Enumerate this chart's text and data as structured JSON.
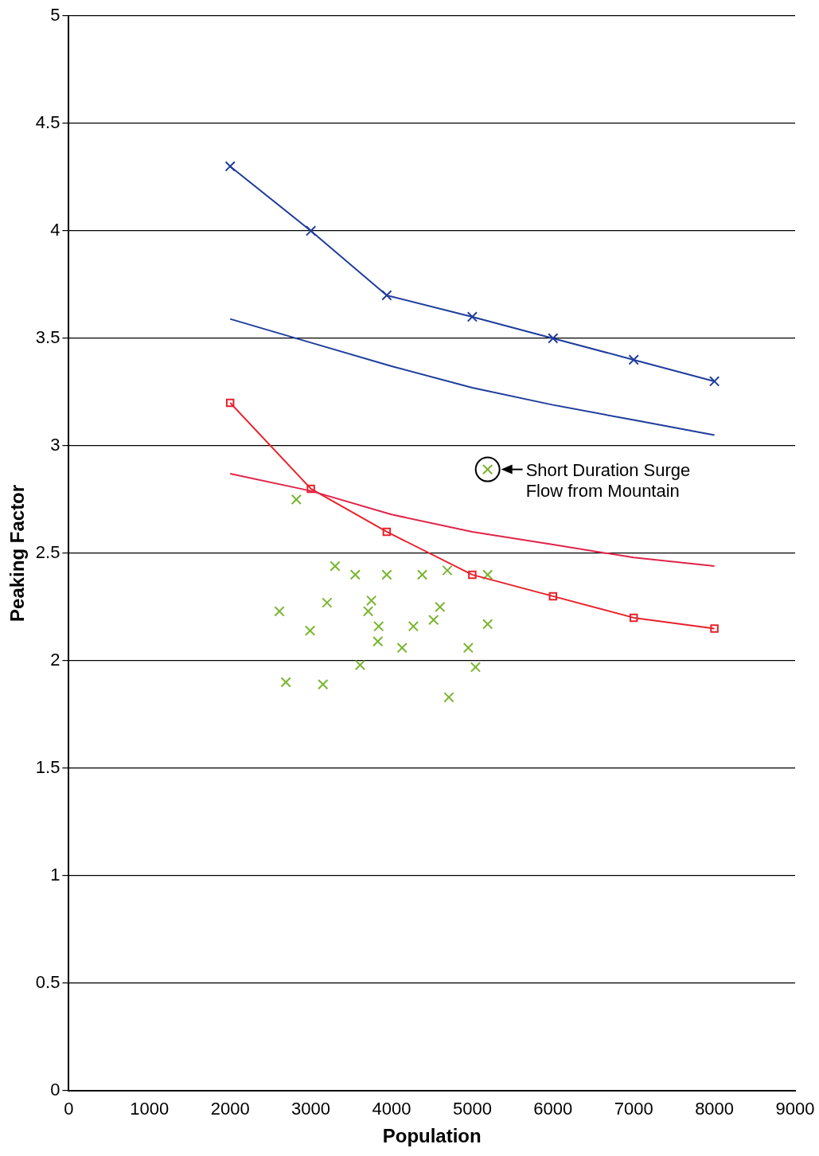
{
  "chart_data": {
    "type": "line",
    "xlabel": "Population",
    "ylabel": "Peaking Factor",
    "xlim": [
      0,
      9000
    ],
    "xticks": [
      0,
      1000,
      2000,
      3000,
      4000,
      5000,
      6000,
      7000,
      8000,
      9000
    ],
    "ylim": [
      0,
      5
    ],
    "yticks": [
      0,
      0.5,
      1,
      1.5,
      2,
      2.5,
      3,
      3.5,
      4,
      4.5,
      5
    ],
    "grid": "y",
    "annotations": [
      {
        "text": "Short Duration Surge Flow from Mountain",
        "x": 5190,
        "y": 2.89
      }
    ],
    "series": [
      {
        "color": "#1f3c9c",
        "marker": "cross",
        "x": [
          2000,
          3000,
          3940,
          5000,
          6000,
          7000,
          8000
        ],
        "values": [
          4.3,
          4.0,
          3.7,
          3.6,
          3.5,
          3.4,
          3.3
        ]
      },
      {
        "color": "#1f3c9c",
        "marker": "none",
        "x": [
          2000,
          3000,
          4000,
          5000,
          6000,
          7000,
          8000
        ],
        "values": [
          3.59,
          3.48,
          3.37,
          3.27,
          3.19,
          3.12,
          3.05
        ]
      },
      {
        "color": "#e0244a",
        "marker": "none",
        "x": [
          2000,
          3000,
          4000,
          5000,
          6000,
          7000,
          8000
        ],
        "values": [
          2.87,
          2.79,
          2.68,
          2.6,
          2.54,
          2.48,
          2.44
        ]
      },
      {
        "color": "#e8202a",
        "marker": "square",
        "x": [
          2000,
          3000,
          3940,
          5000,
          6000,
          7000,
          8000
        ],
        "values": [
          3.2,
          2.8,
          2.6,
          2.4,
          2.3,
          2.2,
          2.15
        ]
      },
      {
        "type": "scatter",
        "color": "#7ab530",
        "marker": "cross",
        "x": [
          5190,
          5190,
          5190,
          5040,
          4950,
          4710,
          4690,
          4600,
          4520,
          4380,
          4270,
          4130,
          3940,
          3840,
          3830,
          3750,
          3710,
          3550,
          3610,
          3300,
          3200,
          3150,
          2990,
          2820,
          2610,
          2690
        ],
        "values": [
          2.89,
          2.4,
          2.17,
          1.97,
          2.06,
          1.83,
          2.42,
          2.25,
          2.19,
          2.4,
          2.16,
          2.06,
          2.4,
          2.16,
          2.09,
          2.28,
          2.23,
          2.4,
          1.98,
          2.44,
          2.27,
          1.89,
          2.14,
          2.75,
          2.23,
          1.9
        ]
      }
    ]
  }
}
